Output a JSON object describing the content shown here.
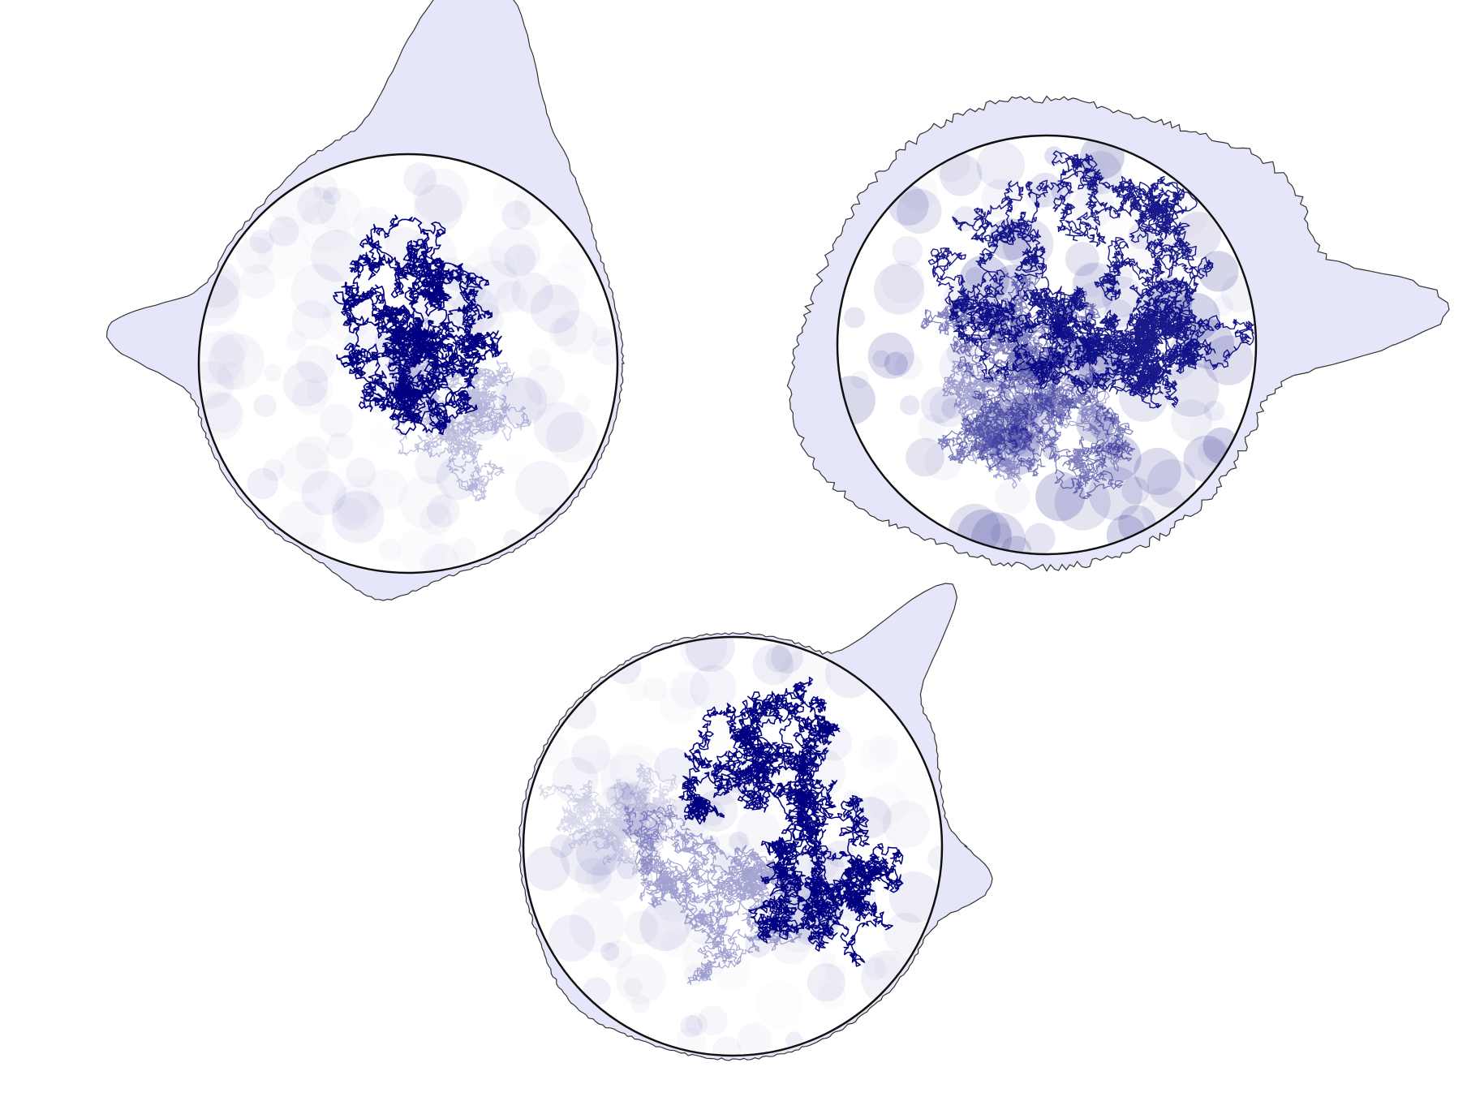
{
  "figure": {
    "description_free": true,
    "colors": {
      "walk": "#000080",
      "density_fill": "#e6e6fa",
      "density_stroke": "#333333",
      "circle_stroke": "#111111",
      "background": "#ffffff"
    },
    "panels": [
      {
        "id": "top-left",
        "walk_intensity": "low"
      },
      {
        "id": "top-right",
        "walk_intensity": "high"
      },
      {
        "id": "bottom",
        "walk_intensity": "medium"
      }
    ]
  }
}
